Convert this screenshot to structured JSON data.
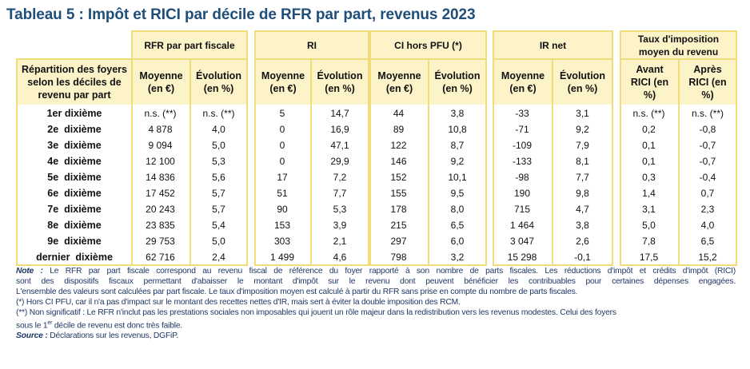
{
  "title": "Tableau 5 : Impôt et RICI par décile de RFR par part, revenus 2023",
  "row_header": "Répartition des foyers selon les déciles de revenu par part",
  "groups": [
    {
      "label": "RFR par part fiscale",
      "cols": [
        "Moyenne (en €)",
        "Évolution (en %)"
      ]
    },
    {
      "label": "RI",
      "cols": [
        "Moyenne (en €)",
        "Évolution (en %)"
      ]
    },
    {
      "label": "CI hors PFU (*)",
      "cols": [
        "Moyenne (en €)",
        "Évolution (en %)"
      ]
    },
    {
      "label": "IR net",
      "cols": [
        "Moyenne (en €)",
        "Évolution (en %)"
      ]
    },
    {
      "label": "Taux d'imposition moyen du revenu",
      "cols": [
        "Avant RICI (en %)",
        "Après RICI (en %)"
      ]
    }
  ],
  "rows": [
    {
      "label": "1er dixième",
      "values": [
        "n.s. (**)",
        "n.s. (**)",
        "5",
        "14,7",
        "44",
        "3,8",
        "-33",
        "3,1",
        "n.s. (**)",
        "n.s. (**)"
      ]
    },
    {
      "label": "2e  dixième",
      "values": [
        "4 878",
        "4,0",
        "0",
        "16,9",
        "89",
        "10,8",
        "-71",
        "9,2",
        "0,2",
        "-0,8"
      ]
    },
    {
      "label": "3e  dixième",
      "values": [
        "9 094",
        "5,0",
        "0",
        "47,1",
        "122",
        "8,7",
        "-109",
        "7,9",
        "0,1",
        "-0,7"
      ]
    },
    {
      "label": "4e  dixième",
      "values": [
        "12 100",
        "5,3",
        "0",
        "29,9",
        "146",
        "9,2",
        "-133",
        "8,1",
        "0,1",
        "-0,7"
      ]
    },
    {
      "label": "5e  dixième",
      "values": [
        "14 836",
        "5,6",
        "17",
        "7,2",
        "152",
        "10,1",
        "-98",
        "7,7",
        "0,3",
        "-0,4"
      ]
    },
    {
      "label": "6e  dixième",
      "values": [
        "17 452",
        "5,7",
        "51",
        "7,7",
        "155",
        "9,5",
        "190",
        "9,8",
        "1,4",
        "0,7"
      ]
    },
    {
      "label": "7e  dixième",
      "values": [
        "20 243",
        "5,7",
        "90",
        "5,3",
        "178",
        "8,0",
        "715",
        "4,7",
        "3,1",
        "2,3"
      ]
    },
    {
      "label": "8e  dixième",
      "values": [
        "23 835",
        "5,4",
        "153",
        "3,9",
        "215",
        "6,5",
        "1 464",
        "3,8",
        "5,0",
        "4,0"
      ]
    },
    {
      "label": "9e  dixième",
      "values": [
        "29 753",
        "5,0",
        "303",
        "2,1",
        "297",
        "6,0",
        "3 047",
        "2,6",
        "7,8",
        "6,5"
      ]
    },
    {
      "label": "dernier  dixième",
      "values": [
        "62 716",
        "2,4",
        "1 499",
        "4,6",
        "798",
        "3,2",
        "15 298",
        "-0,1",
        "17,5",
        "15,2"
      ]
    }
  ],
  "notes": {
    "note_label": "Note :",
    "note_line1": " Le RFR par part fiscale correspond au revenu fiscal de référence du foyer rapporté à son nombre de parts fiscales. Les réductions d'impôt et crédits d'impôt (RICI)",
    "note_line2": "sont des dispositifs fiscaux permettant d'abaisser le montant d'impôt sur le revenu dont peuvent bénéficier les contribuables pour certaines dépenses engagées.",
    "note_line3": "L'ensemble des valeurs sont calculées par part fiscale. Le taux d'imposition moyen est calculé à partir du RFR sans prise en compte du nombre de parts fiscales.",
    "star1": "(*) Hors CI PFU, car il n'a pas d'impact sur le montant des recettes nettes d'IR, mais sert à éviter la double imposition des RCM.",
    "star2_line1": "(**) Non significatif : Le RFR n'inclut pas les prestations sociales non imposables qui jouent un rôle majeur dans la redistribution vers les revenus modestes. Celui des foyers",
    "star2_line2_a": "sous le 1",
    "star2_line2_sup": "er",
    "star2_line2_b": " décile de revenu est donc très faible.",
    "source_label": "Source :",
    "source_text": " Déclarations sur les revenus, DGFiP."
  }
}
